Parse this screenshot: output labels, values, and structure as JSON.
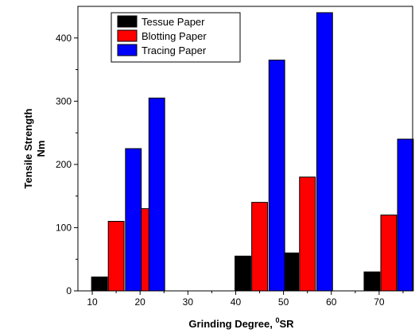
{
  "chart_data": {
    "type": "bar",
    "xlabel": "Grinding Degree, ",
    "xlabel_sup": "0",
    "xlabel_suffix": "SR",
    "ylabel_line1": "Tensile Strength",
    "ylabel_line2": "Nm",
    "xlim": [
      7,
      77
    ],
    "ylim": [
      0,
      450
    ],
    "x_ticks": [
      10,
      20,
      30,
      40,
      50,
      60,
      70
    ],
    "y_ticks": [
      0,
      100,
      200,
      300,
      400
    ],
    "bar_width": 3.3,
    "legend_position": "top-left",
    "series": [
      {
        "name": "Tessue Paper",
        "color": "#000000",
        "x": [
          11.5,
          41.5,
          51.5,
          68.5
        ],
        "values": [
          22,
          55,
          60,
          30
        ]
      },
      {
        "name": "Blotting Paper",
        "color": "#ff0000",
        "x": [
          15.0,
          45.0,
          55.0,
          72.0
        ],
        "values": [
          110,
          140,
          180,
          120
        ]
      },
      {
        "name": "Blotting Paper (extra bar)",
        "legend": false,
        "color": "#ff0000",
        "x": [
          21.7
        ],
        "values": [
          130
        ]
      },
      {
        "name": "Tracing Paper",
        "color": "#0000ff",
        "x": [
          18.6,
          23.5,
          48.6,
          58.6,
          75.5
        ],
        "values": [
          225,
          305,
          365,
          440,
          240
        ]
      }
    ]
  }
}
